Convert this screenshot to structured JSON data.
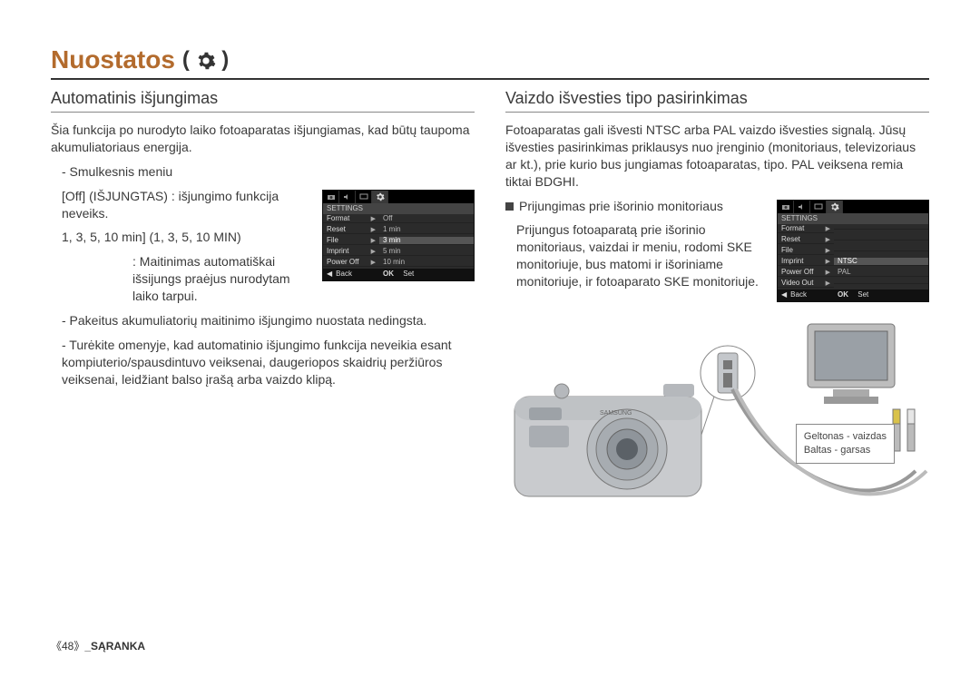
{
  "title": "Nuostatos",
  "title_icon": "gear-icon",
  "left": {
    "heading": "Automatinis išjungimas",
    "intro": "Šia funkcija po nurodyto laiko fotoaparatas išjungiamas, kad būtų taupoma akumuliatoriaus energija.",
    "sub_line": "- Smulkesnis meniu",
    "off_label": "[Off] (IŠJUNGTAS)",
    "off_desc": ": išjungimo funkcija neveiks.",
    "time_label": "1, 3, 5, 10 min] (1, 3, 5, 10 MIN)",
    "time_desc": ": Maitinimas automatiškai išsijungs praėjus nurodytam laiko tarpui.",
    "note1": "- Pakeitus akumuliatorių maitinimo išjungimo nuostata nedingsta.",
    "note2": "- Turėkite omenyje, kad automatinio išjungimo funkcija neveikia esant kompiuterio/spausdintuvo veiksenai, daugeriopos skaidrių peržiūros veiksenai, leidžiant balso įrašą arba vaizdo klipą.",
    "lcd": {
      "tab_hdr": "SETTINGS",
      "rows": [
        {
          "l": "Format",
          "r": "Off"
        },
        {
          "l": "Reset",
          "r": "1 min"
        },
        {
          "l": "File",
          "r": "3 min",
          "sel": true
        },
        {
          "l": "Imprint",
          "r": "5 min"
        },
        {
          "l": "Power Off",
          "r": "10 min"
        }
      ],
      "foot_back_sym": "◀",
      "foot_back": "Back",
      "foot_ok": "OK",
      "foot_set": "Set"
    }
  },
  "right": {
    "heading": "Vaizdo išvesties tipo pasirinkimas",
    "intro": "Fotoaparatas gali išvesti NTSC arba PAL vaizdo išvesties signalą. Jūsų išvesties pasirinkimas priklausys nuo įrenginio (monitoriaus, televizoriaus ar kt.), prie kurio bus jungiamas fotoaparatas, tipo. PAL veiksena remia tiktai BDGHI.",
    "bullet_label": "Prijungimas prie išorinio monitoriaus",
    "bullet_body": "Prijungus fotoaparatą prie išorinio monitoriaus, vaizdai ir meniu, rodomi SKE monitoriuje, bus matomi ir išoriniame monitoriuje, ir fotoaparato SKE monitoriuje.",
    "lcd": {
      "tab_hdr": "SETTINGS",
      "rows": [
        {
          "l": "Format",
          "r": ""
        },
        {
          "l": "Reset",
          "r": ""
        },
        {
          "l": "File",
          "r": ""
        },
        {
          "l": "Imprint",
          "r": "NTSC",
          "sel": true
        },
        {
          "l": "Power Off",
          "r": "PAL"
        },
        {
          "l": "Video Out",
          "r": ""
        }
      ],
      "foot_back_sym": "◀",
      "foot_back": "Back",
      "foot_ok": "OK",
      "foot_set": "Set"
    },
    "diagram": {
      "yellow_label": "Geltonas - vaizdas",
      "white_label": "Baltas - garsas"
    }
  },
  "footer_page": "《48》",
  "footer_section": "_SĄRANKA",
  "colors": {
    "title": "#b36b2d",
    "text": "#3a3a3a",
    "lcd_bg": "#2b2b2b",
    "lcd_sel": "#555555"
  }
}
